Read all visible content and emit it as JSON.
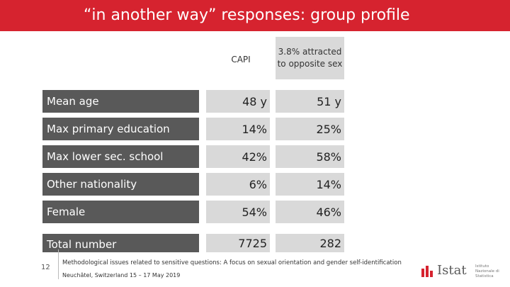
{
  "slide": {
    "title": "“in another way” responses: group profile",
    "page_number": "12"
  },
  "table": {
    "columns": [
      {
        "header": "CAPI"
      },
      {
        "header": "3.8% attracted to opposite sex"
      }
    ],
    "rows": [
      {
        "label": "Mean age",
        "v1": "48 y",
        "v2": "51 y"
      },
      {
        "label": "Max primary education",
        "v1": "14%",
        "v2": "25%"
      },
      {
        "label": "Max lower sec. school",
        "v1": "42%",
        "v2": "58%"
      },
      {
        "label": "Other nationality",
        "v1": "6%",
        "v2": "14%"
      },
      {
        "label": "Female",
        "v1": "54%",
        "v2": "46%"
      },
      {
        "label": "Total number",
        "v1": "7725",
        "v2": "282"
      }
    ]
  },
  "footer": {
    "conference": "Methodological issues related to sensitive questions: A focus on sexual orientation and gender self-identification",
    "location": "Neuchâtel, Switzerland 15 – 17 May 2019"
  },
  "logo": {
    "name": "Istat",
    "subtitle": "Istituto Nazionale di Statistica"
  },
  "colors": {
    "title_bar": "#d6232f",
    "label_bg": "#595959",
    "cell_bg": "#d9d9d9"
  }
}
